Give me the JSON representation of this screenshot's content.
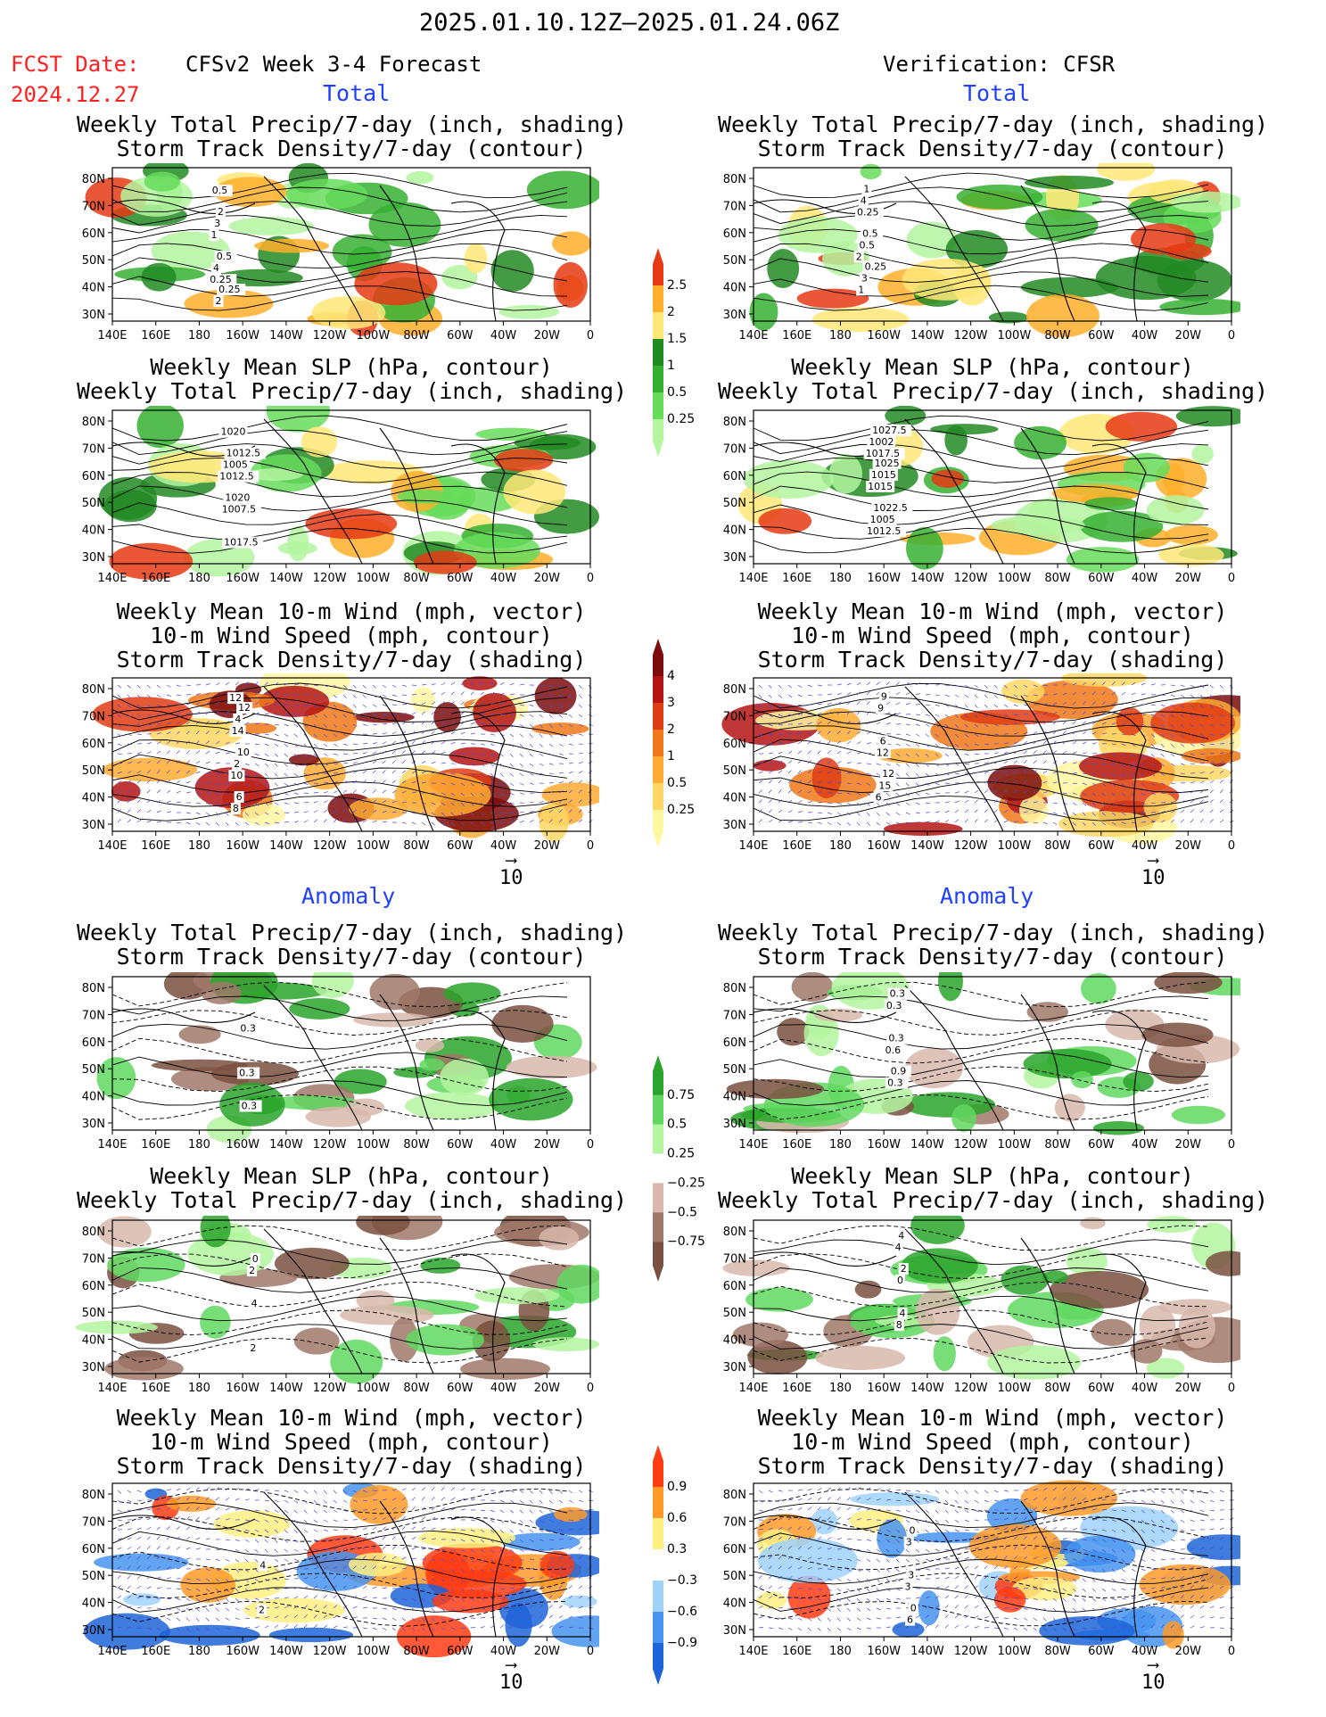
{
  "header": {
    "date_range": "2025.01.10.12Z–2025.01.24.06Z",
    "fcst_date_label": "FCST Date:",
    "fcst_date_value": "2024.12.27",
    "left_title": "CFSv2 Week 3-4 Forecast",
    "right_title": "Verification: CFSR"
  },
  "sections": {
    "total": "Total",
    "anomaly": "Anomaly"
  },
  "panel_titles": {
    "precip_storm": [
      "Weekly Total Precip/7-day (inch, shading)",
      "Storm Track Density/7-day (contour)"
    ],
    "slp_precip": [
      "Weekly Mean SLP (hPa, contour)",
      "Weekly Total Precip/7-day (inch, shading)"
    ],
    "wind_storm": [
      "Weekly Mean 10-m Wind (mph, vector)",
      "10-m Wind Speed (mph, contour)",
      "Storm Track Density/7-day (shading)"
    ]
  },
  "axes": {
    "lat_labels": [
      "80N",
      "70N",
      "60N",
      "50N",
      "40N",
      "30N"
    ],
    "lon_labels": [
      "140E",
      "160E",
      "180",
      "160W",
      "140W",
      "120W",
      "100W",
      "80W",
      "60W",
      "40W",
      "20W",
      "0"
    ]
  },
  "vector_reference": "10",
  "colors": {
    "precip": [
      "#b4f5a0",
      "#66dc5a",
      "#36b032",
      "#228a22",
      "#ffe878",
      "#ffaf2a",
      "#e63a14"
    ],
    "storm_total": [
      "#fff7a0",
      "#ffd764",
      "#ffaa32",
      "#f07818",
      "#e03c14",
      "#b41414",
      "#7c0c0c"
    ],
    "precip_anom": [
      "#7a5040",
      "#a07868",
      "#d8b8ac",
      "#ffffff",
      "#b4f5a0",
      "#60d860",
      "#2aa42a"
    ],
    "storm_anom": [
      "#1e64d8",
      "#4694f0",
      "#a0d2fa",
      "#ffffff",
      "#fff082",
      "#ff9a28",
      "#ff3c14"
    ]
  },
  "colorbars": [
    {
      "id": "precip",
      "labels": [
        "2.5",
        "2",
        "1.5",
        "1",
        "0.5",
        "0.25"
      ]
    },
    {
      "id": "storm_total",
      "labels": [
        "4",
        "3",
        "2",
        "1",
        "0.5",
        "0.25"
      ]
    },
    {
      "id": "precip_anom",
      "labels": [
        "0.75",
        "0.5",
        "0.25",
        "−0.25",
        "−0.5",
        "−0.75"
      ]
    },
    {
      "id": "storm_anom",
      "labels": [
        "0.9",
        "0.6",
        "0.3",
        "−0.3",
        "−0.6",
        "−0.9"
      ]
    }
  ],
  "map_labels": {
    "p1": [
      "0.25",
      "1",
      "0.5",
      "4",
      "3",
      "2",
      "0.5",
      "2",
      "0.25"
    ],
    "p2": [
      "1012.5",
      "1020",
      "1007.5",
      "1005",
      "1017.5",
      "1020",
      "1012.5"
    ],
    "p3": [
      "12",
      "10",
      "14",
      "8",
      "2",
      "4",
      "6",
      "10",
      "12"
    ],
    "p4": [
      "2",
      "0.25",
      "1",
      "0.5",
      "4",
      "3",
      "0.5",
      "1",
      "0.25"
    ],
    "p5": [
      "1017.5",
      "1012.5",
      "1015",
      "1002",
      "1005",
      "1015",
      "1027.5",
      "1022.5",
      "1025"
    ],
    "p6": [
      "6",
      "12",
      "9",
      "15",
      "6",
      "9",
      "12"
    ],
    "p7": [
      "0.3",
      "0.3",
      "0.3"
    ],
    "p8": [
      "0.6",
      "0.3",
      "0.3",
      "0.3",
      "0.3",
      "0.9"
    ],
    "p9": [
      "2",
      "2",
      "4",
      "0"
    ],
    "p10": [
      "4",
      "8",
      "0",
      "4",
      "4",
      "2"
    ],
    "p11": [
      "2",
      "4"
    ],
    "p12": [
      "3",
      "3",
      "6",
      "3",
      "0",
      "0"
    ]
  }
}
